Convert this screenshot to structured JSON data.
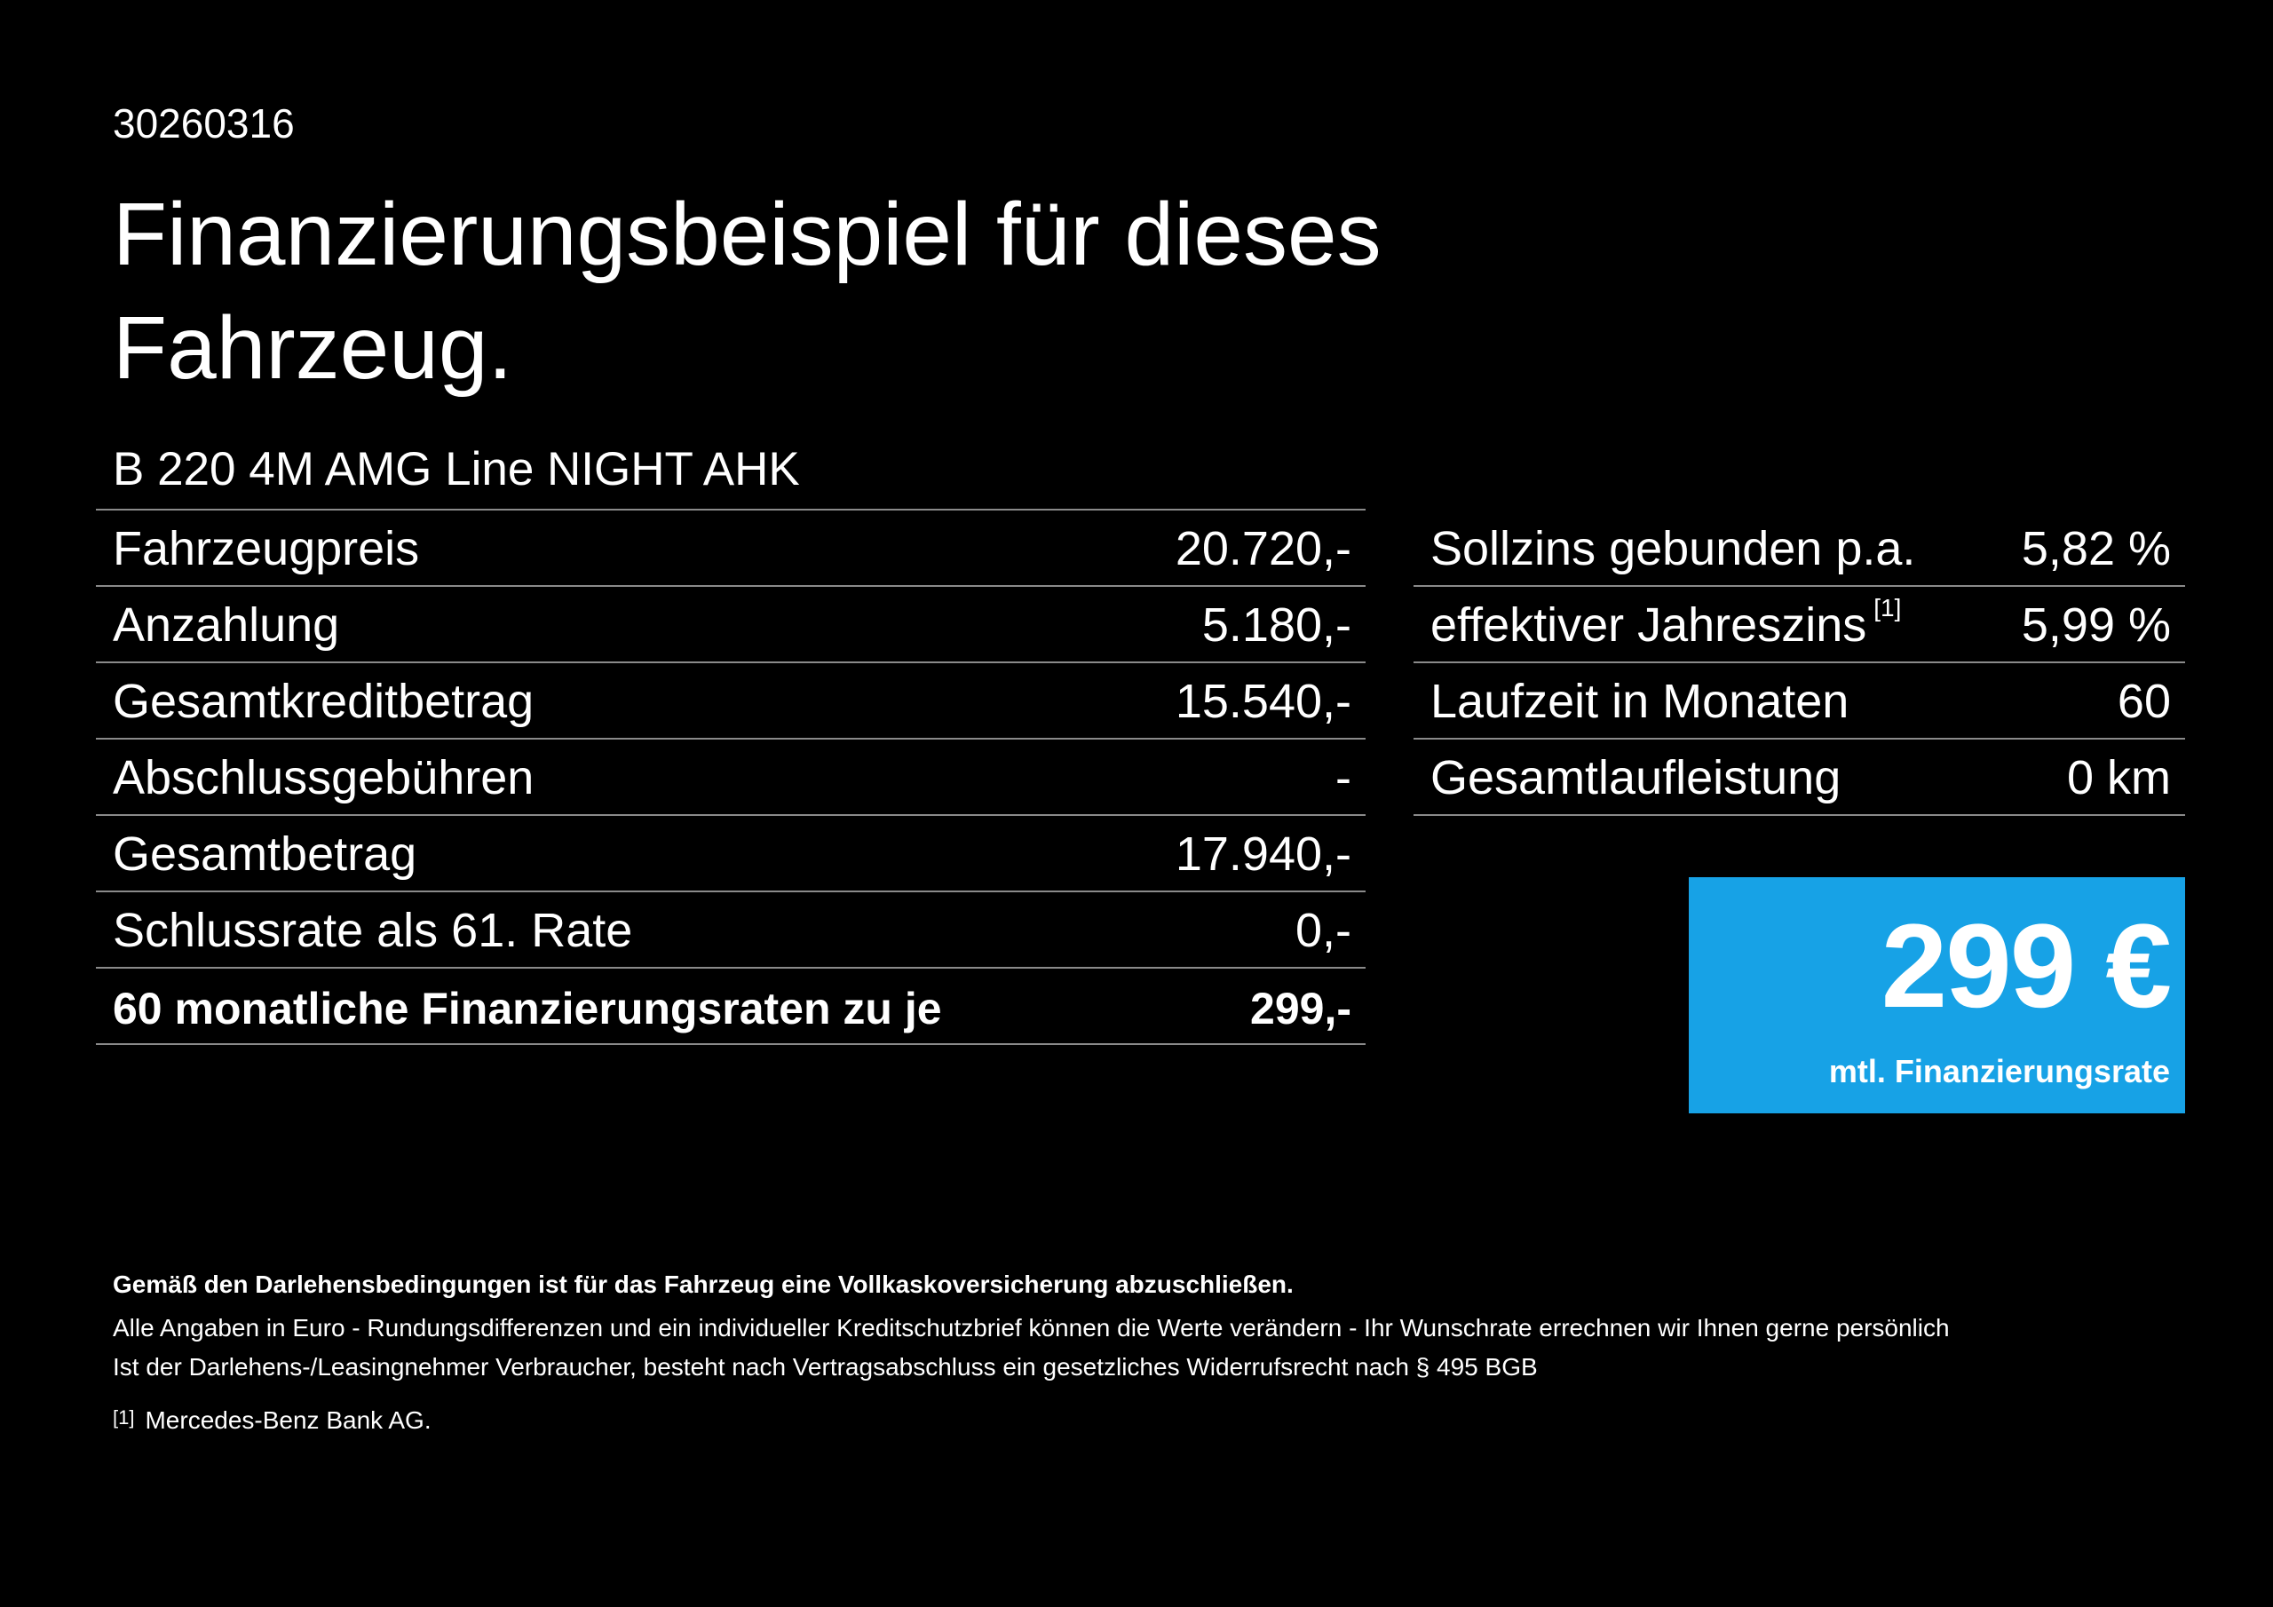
{
  "doc_id": "30260316",
  "title": "Finanzierungsbeispiel für dieses Fahrzeug.",
  "model": "B 220 4M AMG Line NIGHT AHK",
  "left_table": [
    {
      "label": "Fahrzeugpreis",
      "value": "20.720,-"
    },
    {
      "label": "Anzahlung",
      "value": "5.180,-"
    },
    {
      "label": "Gesamtkreditbetrag",
      "value": "15.540,-"
    },
    {
      "label": "Abschlussgebühren",
      "value": "-"
    },
    {
      "label": "Gesamtbetrag",
      "value": "17.940,-"
    },
    {
      "label": "Schlussrate als 61. Rate",
      "value": "0,-"
    },
    {
      "label": "60 monatliche Finanzierungsraten zu je",
      "value": "299,-"
    }
  ],
  "right_table": [
    {
      "label": "Sollzins gebunden p.a.",
      "value": "5,82 %"
    },
    {
      "label": "effektiver Jahreszins",
      "footnote": "[1]",
      "value": "5,99 %"
    },
    {
      "label": "Laufzeit in Monaten",
      "value": "60"
    },
    {
      "label": "Gesamtlaufleistung",
      "value": "0 km"
    }
  ],
  "rate_box": {
    "amount": "299 €",
    "caption": "mtl. Finanzierungsrate",
    "color": "#17a2e6"
  },
  "footer": {
    "bold_note": "Gemäß den Darlehensbedingungen ist für das Fahrzeug eine Vollkaskoversicherung abzuschließen.",
    "line1": "Alle Angaben in Euro - Rundungsdifferenzen und ein individueller Kreditschutzbrief können die Werte verändern - Ihr Wunschrate errechnen wir Ihnen gerne persönlich",
    "line2": "Ist der Darlehens-/Leasingnehmer Verbraucher, besteht nach Vertragsabschluss ein gesetzliches Widerrufsrecht nach § 495 BGB",
    "footnote_mark": "[1]",
    "footnote_text": "Mercedes-Benz Bank AG."
  }
}
